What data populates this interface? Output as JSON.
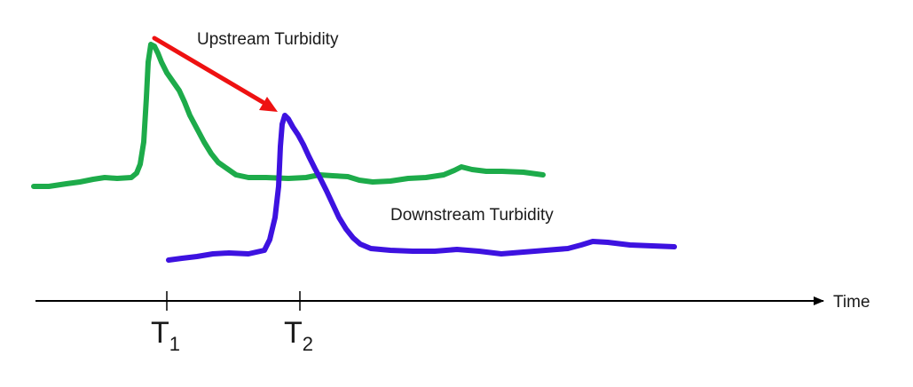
{
  "diagram": {
    "upstream_label": "Upstream Turbidity",
    "downstream_label": "Downstream Turbidity",
    "axis_label": "Time",
    "tick_labels": [
      {
        "base": "T",
        "sub": "1"
      },
      {
        "base": "T",
        "sub": "2"
      }
    ],
    "colors": {
      "upstream": "#1dab4a",
      "downstream": "#3d12e0",
      "arrow": "#ee1111",
      "axis": "#000000"
    }
  }
}
